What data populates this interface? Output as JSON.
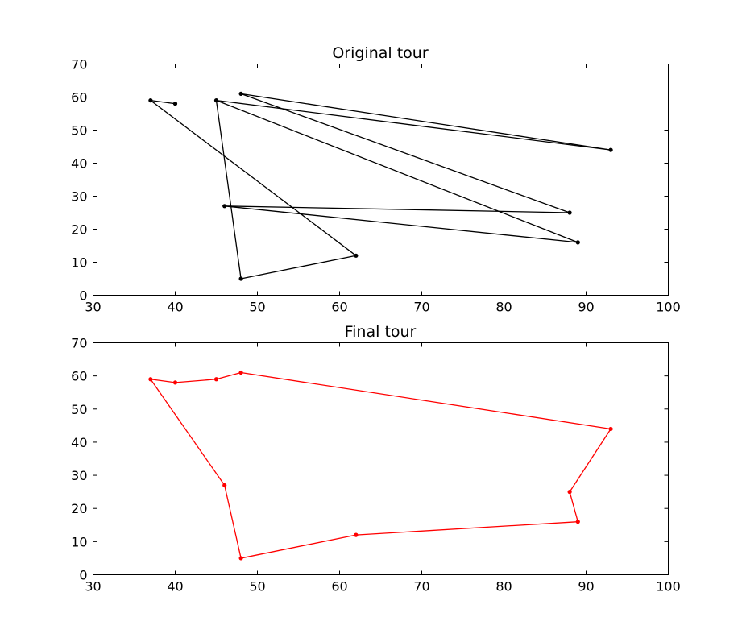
{
  "chart_data": [
    {
      "type": "line",
      "title": "Original tour",
      "xlabel": "",
      "ylabel": "",
      "xlim": [
        30,
        100
      ],
      "ylim": [
        0,
        70
      ],
      "xticks": [
        30,
        40,
        50,
        60,
        70,
        80,
        90,
        100
      ],
      "yticks": [
        0,
        10,
        20,
        30,
        40,
        50,
        60,
        70
      ],
      "grid": false,
      "color": "#000000",
      "series": [
        {
          "x": [
            48,
            93,
            45,
            89,
            46,
            88,
            48
          ],
          "y": [
            61,
            44,
            59,
            16,
            27,
            25,
            61
          ]
        },
        {
          "x": [
            40,
            37,
            62,
            48,
            45
          ],
          "y": [
            58,
            59,
            12,
            5,
            59
          ]
        }
      ]
    },
    {
      "type": "line",
      "title": "Final tour",
      "xlabel": "",
      "ylabel": "",
      "xlim": [
        30,
        100
      ],
      "ylim": [
        0,
        70
      ],
      "xticks": [
        30,
        40,
        50,
        60,
        70,
        80,
        90,
        100
      ],
      "yticks": [
        0,
        10,
        20,
        30,
        40,
        50,
        60,
        70
      ],
      "grid": false,
      "color": "#ff0000",
      "series": [
        {
          "x": [
            37,
            40,
            45,
            48,
            93,
            88,
            89,
            62,
            48,
            46,
            37
          ],
          "y": [
            59,
            58,
            59,
            61,
            44,
            25,
            16,
            12,
            5,
            27,
            59
          ]
        }
      ]
    }
  ]
}
